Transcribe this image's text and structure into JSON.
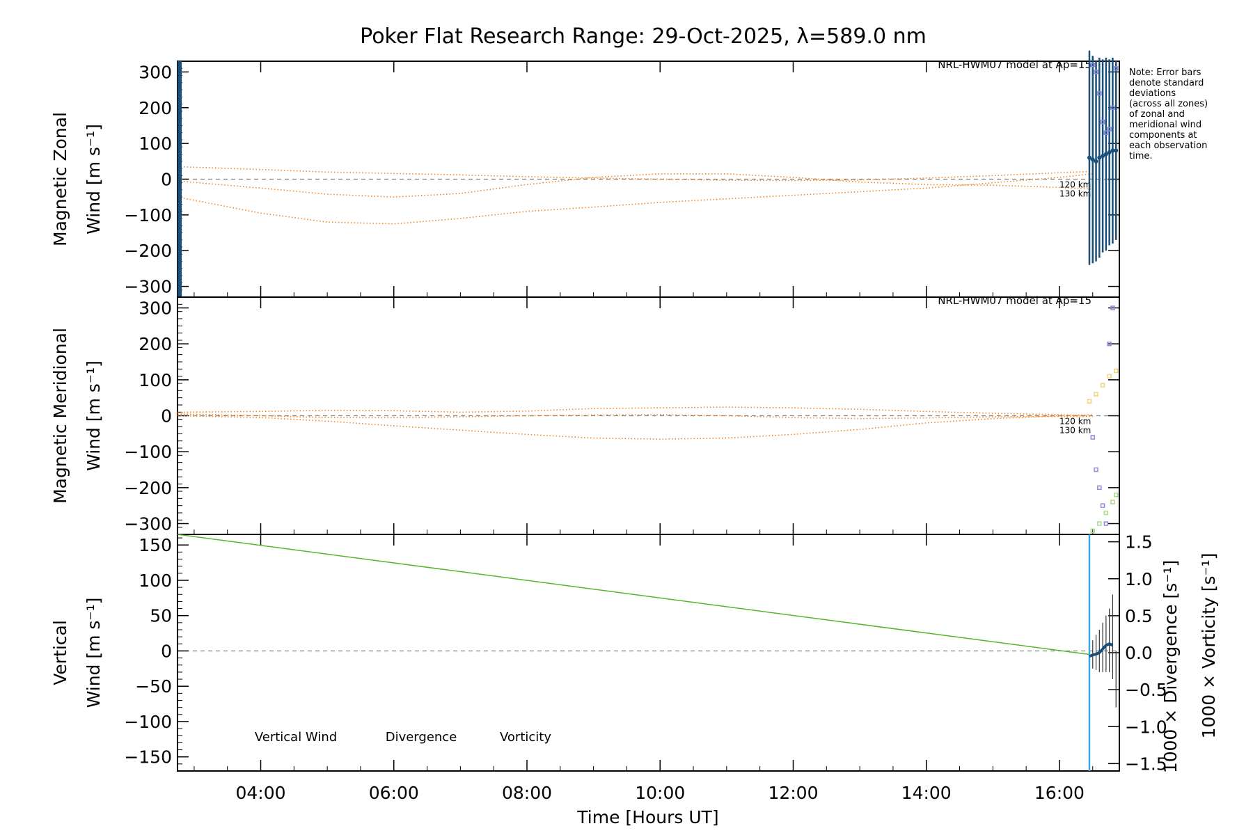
{
  "title": "Poker Flat Research Range: 29-Oct-2025, λ=589.0 nm",
  "note": [
    "Note: Error bars",
    "denote standard",
    "deviations",
    "(across all zones)",
    "of zonal and",
    "meridional wind",
    "components at",
    "each observation",
    "time."
  ],
  "colors": {
    "model": "#f5821f",
    "vertical": "#5ab42d",
    "divergence": "#3ca8dc",
    "vorticity": "#ee3c82",
    "zonal_bars": "#1a4f7a",
    "scatter_a": "#8c8cdc",
    "scatter_b": "#f0d282",
    "zero_line": "#808080"
  },
  "chart_data": [
    {
      "id": "zonal",
      "type": "line",
      "ylabel": [
        "Magnetic Zonal",
        "Wind [m s⁻¹]"
      ],
      "ylim": [
        -330,
        330
      ],
      "yticks": [
        -300,
        -200,
        -100,
        0,
        100,
        200,
        300
      ],
      "xlim": [
        2.75,
        16.9
      ],
      "model_label": "NRL-HWM07 model at Ap=15",
      "altitude_labels": [
        "120 km",
        "130 km"
      ],
      "model_series": [
        {
          "x": [
            2.75,
            4,
            5,
            6,
            7,
            8,
            9,
            10,
            11,
            12,
            13,
            14,
            15,
            16,
            16.5
          ],
          "y": [
            35,
            27,
            20,
            16,
            12,
            7,
            3,
            0,
            -3,
            -4,
            -2,
            3,
            10,
            18,
            22
          ]
        },
        {
          "x": [
            2.75,
            4,
            5,
            6,
            7,
            8,
            9,
            10,
            11,
            12,
            13,
            14,
            15,
            16,
            16.5
          ],
          "y": [
            -5,
            -25,
            -42,
            -50,
            -40,
            -15,
            5,
            15,
            15,
            5,
            -8,
            -15,
            -17,
            -23,
            -28
          ]
        },
        {
          "x": [
            2.75,
            4,
            5,
            6,
            7,
            8,
            9,
            10,
            11,
            12,
            13,
            14,
            15,
            16,
            16.5
          ],
          "y": [
            -50,
            -95,
            -120,
            -125,
            -110,
            -90,
            -78,
            -65,
            -55,
            -45,
            -35,
            -25,
            -10,
            5,
            15
          ]
        }
      ],
      "observed_bars": {
        "x": [
          16.45,
          16.5,
          16.55,
          16.6,
          16.65,
          16.7,
          16.75,
          16.8,
          16.85
        ],
        "center": [
          60,
          55,
          50,
          60,
          65,
          70,
          75,
          80,
          80
        ],
        "halfwidth": [
          300,
          290,
          280,
          280,
          270,
          270,
          260,
          260,
          250
        ]
      },
      "scatter": {
        "x": [
          16.5,
          16.55,
          16.6,
          16.65,
          16.7,
          16.75,
          16.8,
          16.85
        ],
        "y": [
          320,
          300,
          240,
          160,
          130,
          140,
          200,
          310
        ]
      }
    },
    {
      "id": "meridional",
      "type": "line",
      "ylabel": [
        "Magnetic Meridional",
        "Wind [m s⁻¹]"
      ],
      "ylim": [
        -330,
        330
      ],
      "yticks": [
        -300,
        -200,
        -100,
        0,
        100,
        200,
        300
      ],
      "xlim": [
        2.75,
        16.9
      ],
      "model_label": "NRL-HWM07 model at Ap=15",
      "altitude_labels": [
        "120 km",
        "130 km"
      ],
      "model_series": [
        {
          "x": [
            2.75,
            4,
            5,
            6,
            7,
            8,
            9,
            10,
            11,
            12,
            13,
            14,
            15,
            16,
            16.5
          ],
          "y": [
            10,
            12,
            15,
            14,
            10,
            13,
            20,
            22,
            24,
            22,
            18,
            12,
            7,
            3,
            0
          ]
        },
        {
          "x": [
            2.75,
            4,
            5,
            6,
            7,
            8,
            9,
            10,
            11,
            12,
            13,
            14,
            15,
            16,
            16.5
          ],
          "y": [
            5,
            0,
            -5,
            -5,
            -3,
            0,
            2,
            3,
            0,
            -5,
            -8,
            -6,
            -3,
            -2,
            -2
          ]
        },
        {
          "x": [
            2.75,
            4,
            5,
            6,
            7,
            8,
            9,
            10,
            11,
            12,
            13,
            14,
            15,
            16,
            16.5
          ],
          "y": [
            0,
            -5,
            -15,
            -28,
            -40,
            -52,
            -62,
            -65,
            -62,
            -52,
            -38,
            -20,
            -8,
            0,
            3
          ]
        }
      ],
      "scatter_a": {
        "x": [
          16.5,
          16.55,
          16.6,
          16.65,
          16.7,
          16.75,
          16.8
        ],
        "y": [
          -60,
          -150,
          -200,
          -250,
          -300,
          200,
          300
        ]
      },
      "scatter_b": {
        "x": [
          16.45,
          16.55,
          16.65,
          16.75,
          16.85
        ],
        "y": [
          40,
          60,
          85,
          110,
          125
        ]
      },
      "scatter_c": {
        "x": [
          16.5,
          16.6,
          16.7,
          16.8,
          16.85
        ],
        "y": [
          -320,
          -300,
          -270,
          -240,
          -220
        ]
      }
    },
    {
      "id": "vertical",
      "type": "line",
      "ylabel": [
        "Vertical",
        "Wind [m s⁻¹]"
      ],
      "ylim": [
        -170,
        165
      ],
      "yticks": [
        -150,
        -100,
        -50,
        0,
        50,
        100,
        150
      ],
      "xlim": [
        2.75,
        16.9
      ],
      "y2label": [
        "1000 × Divergence [s⁻¹]",
        "1000 × Vorticity [s⁻¹]"
      ],
      "y2lim": [
        -1.6,
        1.6
      ],
      "y2ticks": [
        "1.5",
        "1.0",
        "0.5",
        "0.0",
        "−0.5",
        "−1.0",
        "−1.5"
      ],
      "y2tick_values": [
        1.5,
        1.0,
        0.5,
        0.0,
        -0.5,
        -1.0,
        -1.5
      ],
      "legend": [
        "Vertical Wind",
        "Divergence",
        "Vorticity"
      ],
      "vertical_line": {
        "x": [
          2.75,
          16.45
        ],
        "y": [
          165,
          -5
        ]
      },
      "divergence_line_x": 16.45,
      "divergence_points": {
        "x": [
          16.45,
          16.5,
          16.55,
          16.6,
          16.65,
          16.7,
          16.75,
          16.8
        ],
        "y": [
          -0.05,
          -0.03,
          -0.02,
          0.0,
          0.05,
          0.1,
          0.12,
          0.1
        ]
      },
      "vertical_errorbars": {
        "x": [
          16.5,
          16.55,
          16.6,
          16.65,
          16.7,
          16.75,
          16.8,
          16.85
        ],
        "center": [
          -5,
          -2,
          0,
          5,
          10,
          15,
          20,
          -40
        ],
        "halfwidth": [
          20,
          25,
          30,
          35,
          40,
          45,
          60,
          40
        ]
      }
    }
  ],
  "xticks": [
    "04:00",
    "06:00",
    "08:00",
    "10:00",
    "12:00",
    "14:00",
    "16:00"
  ],
  "xtick_values": [
    4,
    6,
    8,
    10,
    12,
    14,
    16
  ],
  "xlabel": "Time [Hours UT]"
}
